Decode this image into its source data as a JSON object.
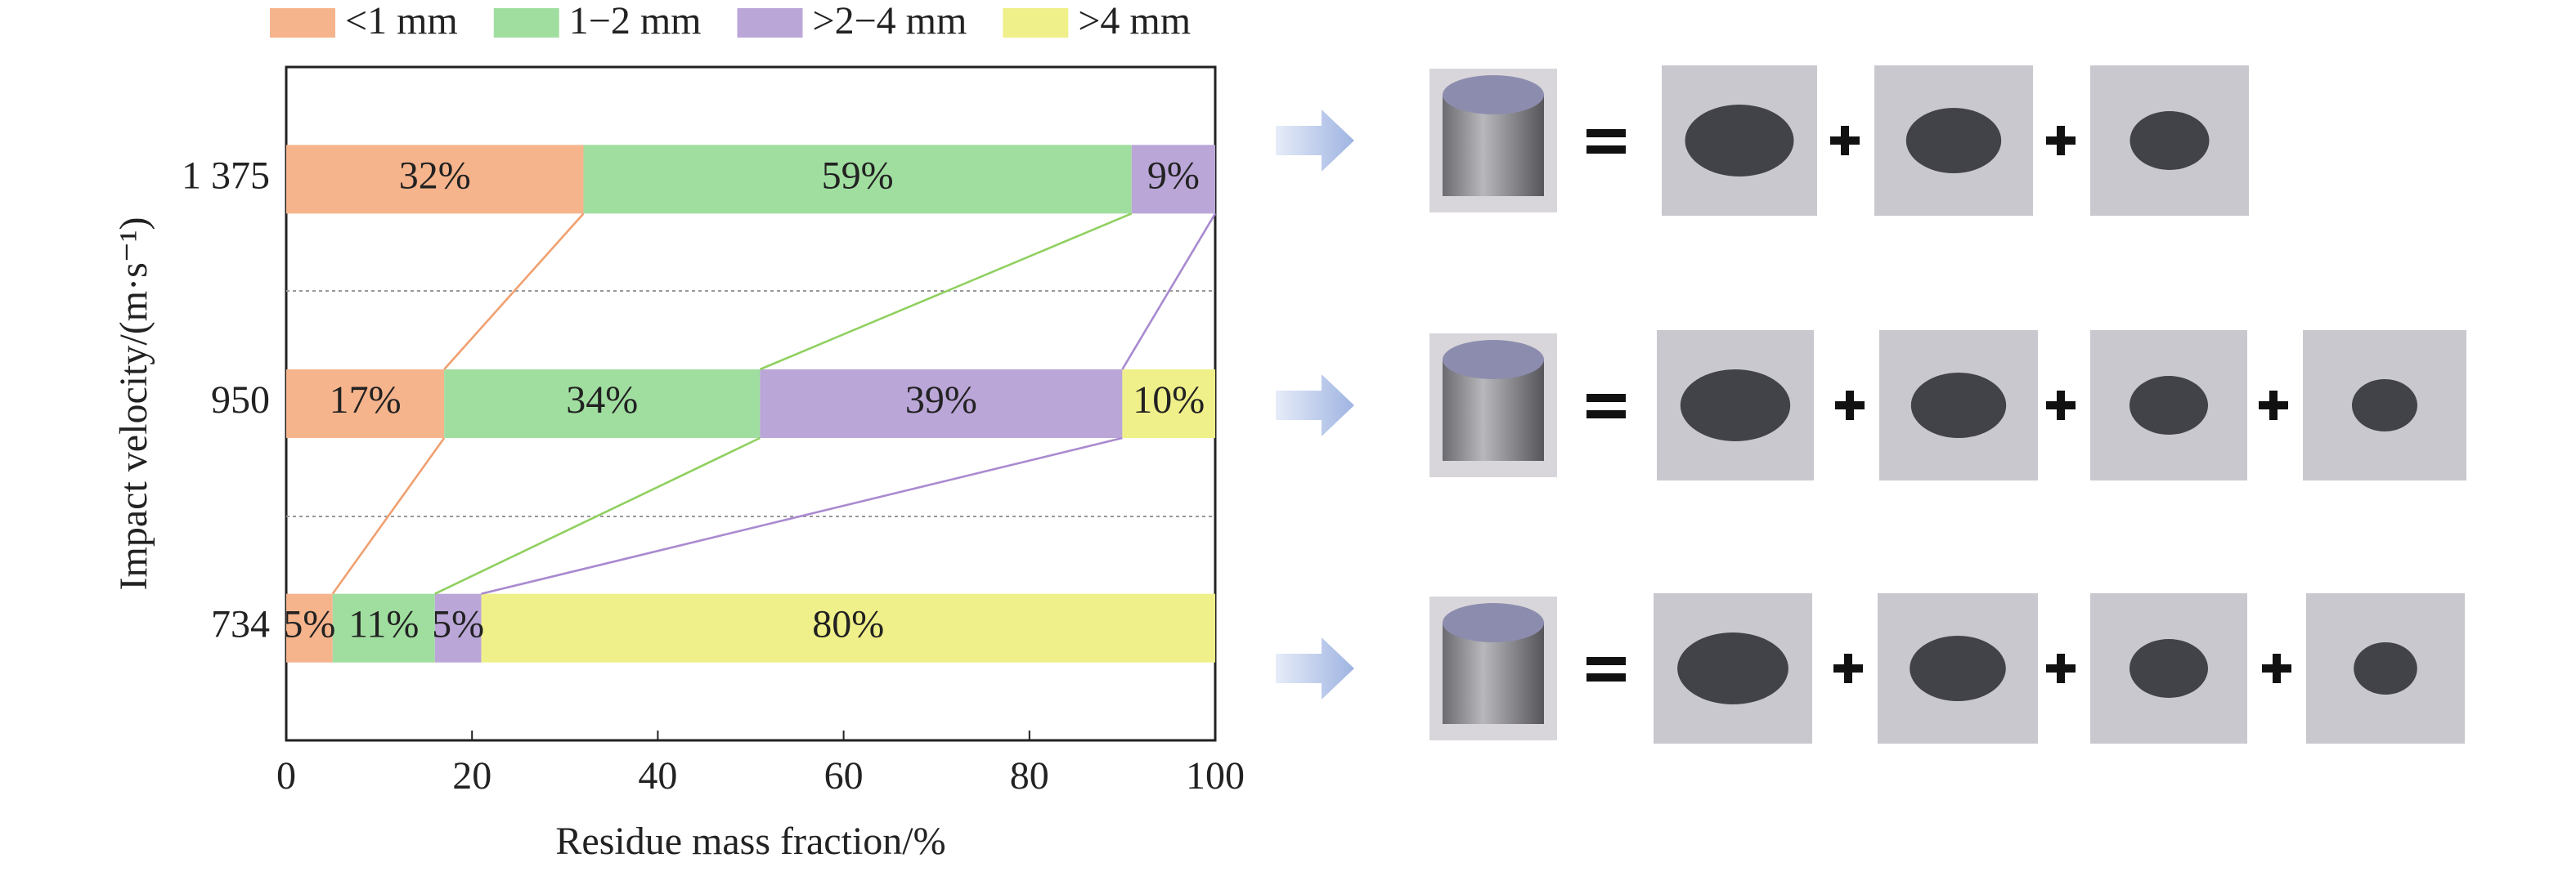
{
  "chart_data": {
    "type": "stacked-bar-horizontal",
    "xlabel": "Residue mass fraction/%",
    "ylabel": "Impact velocity/(m·s⁻¹)",
    "categories": [
      "1 375",
      "950",
      "734"
    ],
    "series": [
      {
        "name": "<1 mm",
        "color": "#f6b48c",
        "values": [
          32,
          17,
          5
        ],
        "value_labels": [
          "32%",
          "17%",
          "5%"
        ]
      },
      {
        "name": "1−2 mm",
        "color": "#a0dea0",
        "values": [
          59,
          34,
          11
        ],
        "value_labels": [
          "59%",
          "34%",
          "11%"
        ]
      },
      {
        "name": ">2−4 mm",
        "color": "#bba6d8",
        "values": [
          9,
          39,
          5
        ],
        "value_labels": [
          "9%",
          "39%",
          "5%"
        ]
      },
      {
        "name": ">4 mm",
        "color": "#f0f08a",
        "values": [
          null,
          10,
          80
        ],
        "value_labels": [
          null,
          "10%",
          "80%"
        ]
      }
    ],
    "xlim": [
      0,
      100
    ],
    "xticks": [
      0,
      20,
      40,
      60,
      80,
      100
    ]
  }
}
